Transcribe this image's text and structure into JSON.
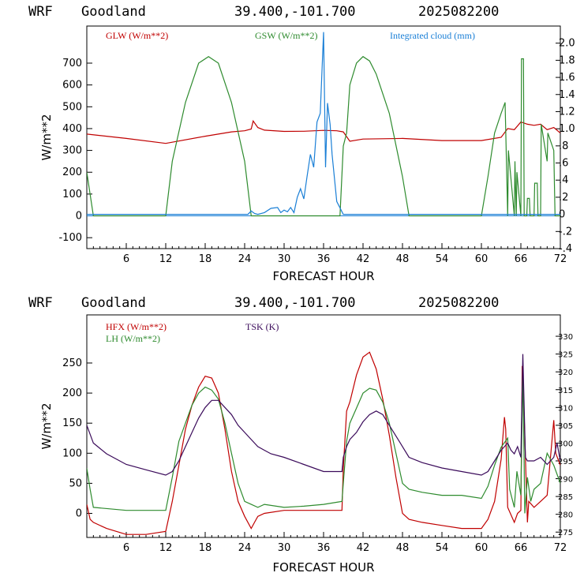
{
  "chart_data": [
    {
      "type": "line",
      "header": {
        "model": "WRF",
        "site": "Goodland",
        "coords": "39.400,-101.700",
        "init": "2025082200"
      },
      "xlabel": "FORECAST HOUR",
      "ylabel": "W/m**2",
      "xlim": [
        0,
        72
      ],
      "x_ticks": [
        "6",
        "12",
        "18",
        "24",
        "30",
        "36",
        "42",
        "48",
        "54",
        "60",
        "66",
        "72"
      ],
      "ylim": [
        -150,
        870
      ],
      "y_ticks": [
        "-100",
        "0",
        "100",
        "200",
        "300",
        "400",
        "500",
        "600",
        "700"
      ],
      "y2lim": [
        -0.4,
        2.2
      ],
      "y2_ticks": [
        "-.4",
        "-.2",
        "0",
        ".2",
        ".4",
        ".6",
        ".8",
        "1.0",
        "1.2",
        "1.4",
        "1.6",
        "1.8",
        "2.0"
      ],
      "legend_placement": "top",
      "colors": {
        "GLW": "#c00000",
        "GSW": "#2e8b2e",
        "CLOUD": "#1a7fd6"
      },
      "series": [
        {
          "name": "GLW (W/m**2)",
          "axis": "left",
          "color": "#c00000",
          "x": [
            0,
            6,
            12,
            18,
            22,
            24,
            25,
            25.3,
            26,
            27,
            30,
            33,
            36,
            38,
            39,
            40,
            42,
            48,
            54,
            60,
            63,
            64,
            65,
            66,
            67,
            68,
            69,
            70,
            71,
            72
          ],
          "y": [
            375,
            355,
            332,
            365,
            385,
            390,
            398,
            435,
            405,
            393,
            387,
            388,
            392,
            390,
            385,
            342,
            352,
            355,
            345,
            345,
            360,
            400,
            395,
            430,
            420,
            415,
            420,
            395,
            405,
            380
          ]
        },
        {
          "name": "GSW (W/m**2)",
          "axis": "left",
          "color": "#2e8b2e",
          "x": [
            0,
            1,
            12,
            13,
            15,
            17,
            18.5,
            20,
            22,
            24,
            25,
            25.5,
            38.5,
            39,
            39.5,
            40,
            41,
            42,
            43,
            44,
            46,
            48,
            49,
            60,
            61,
            62,
            63,
            63.6,
            64,
            64.1,
            65,
            65.1,
            65.3,
            65.4,
            66,
            66.1,
            66.4,
            66.5,
            66.9,
            67,
            67.3,
            67.4,
            68,
            68.1,
            68.5,
            68.6,
            69,
            69.1,
            70,
            70.1,
            71,
            71.2,
            72
          ],
          "y": [
            200,
            0,
            0,
            250,
            520,
            700,
            730,
            700,
            520,
            250,
            0,
            0,
            0,
            320,
            380,
            600,
            700,
            730,
            710,
            650,
            470,
            180,
            0,
            0,
            180,
            380,
            470,
            520,
            0,
            300,
            0,
            250,
            0,
            200,
            0,
            720,
            720,
            0,
            0,
            80,
            80,
            0,
            0,
            150,
            150,
            0,
            0,
            420,
            250,
            380,
            300,
            0,
            0
          ]
        },
        {
          "name": "Integrated cloud (mm)",
          "axis": "right",
          "color": "#1a7fd6",
          "x": [
            0,
            24.5,
            25,
            25.5,
            26,
            27,
            28,
            29,
            29.5,
            30,
            30.5,
            31,
            31.5,
            32,
            32.5,
            33,
            33.5,
            34,
            34.5,
            35,
            35.5,
            36,
            36.3,
            36.6,
            37,
            37.3,
            38,
            39,
            72
          ],
          "y": [
            0,
            0,
            0.04,
            0.01,
            0,
            0.02,
            0.07,
            0.08,
            0.02,
            0.05,
            0.03,
            0.08,
            0.02,
            0.2,
            0.3,
            0.18,
            0.45,
            0.7,
            0.55,
            1.08,
            1.18,
            2.13,
            0.55,
            1.3,
            1.05,
            0.7,
            0.15,
            0,
            0
          ]
        }
      ]
    },
    {
      "type": "line",
      "header": {
        "model": "WRF",
        "site": "Goodland",
        "coords": "39.400,-101.700",
        "init": "2025082200"
      },
      "xlabel": "FORECAST HOUR",
      "ylabel": "W/m**2",
      "xlim": [
        0,
        72
      ],
      "x_ticks": [
        "6",
        "12",
        "18",
        "24",
        "30",
        "36",
        "42",
        "48",
        "54",
        "60",
        "66",
        "72"
      ],
      "ylim": [
        -40,
        330
      ],
      "y_ticks": [
        "0",
        "50",
        "100",
        "150",
        "200",
        "250"
      ],
      "y2lim": [
        273.5,
        336
      ],
      "y2_ticks": [
        "275",
        "280",
        "285",
        "290",
        "295",
        "300",
        "305",
        "310",
        "315",
        "320",
        "325",
        "330"
      ],
      "legend_placement": "top-left",
      "colors": {
        "HFX": "#c00000",
        "LH": "#2e8b2e",
        "TSK": "#3a0a5a"
      },
      "series": [
        {
          "name": "HFX (W/m**2)",
          "axis": "left",
          "color": "#c00000",
          "x": [
            0,
            0.5,
            1,
            3,
            6,
            9,
            12,
            13,
            14,
            15,
            16,
            17,
            18,
            19,
            20,
            21,
            22,
            23,
            24,
            25,
            25.5,
            26,
            27,
            30,
            33,
            36,
            38.8,
            39,
            39.5,
            40,
            41,
            42,
            43,
            44,
            45,
            46,
            47,
            48,
            49,
            51,
            54,
            57,
            60,
            61,
            62,
            63,
            63.5,
            63.7,
            64,
            65,
            65.5,
            66,
            66.2,
            66.5,
            67,
            67.2,
            68,
            69,
            70,
            71,
            71.3,
            72
          ],
          "y": [
            15,
            -10,
            -15,
            -25,
            -35,
            -35,
            -30,
            20,
            80,
            140,
            180,
            210,
            228,
            225,
            200,
            140,
            70,
            20,
            -5,
            -25,
            -15,
            -5,
            0,
            5,
            5,
            5,
            5,
            75,
            170,
            185,
            230,
            260,
            268,
            240,
            190,
            130,
            60,
            0,
            -10,
            -15,
            -20,
            -25,
            -25,
            -10,
            20,
            90,
            160,
            140,
            10,
            -15,
            0,
            5,
            245,
            160,
            -15,
            20,
            10,
            20,
            30,
            155,
            100,
            80
          ]
        },
        {
          "name": "LH (W/m**2)",
          "axis": "left",
          "color": "#2e8b2e",
          "x": [
            0,
            0.5,
            1,
            6,
            12,
            13,
            14,
            15,
            16,
            17,
            18,
            19,
            20,
            21,
            22,
            23,
            24,
            25,
            26,
            27,
            30,
            33,
            36,
            38.8,
            39,
            39.5,
            40,
            41,
            42,
            43,
            44,
            45,
            46,
            47,
            48,
            49,
            51,
            54,
            57,
            60,
            61,
            62,
            63,
            64,
            64.3,
            65,
            65.4,
            66,
            66.3,
            66.6,
            67,
            67.5,
            68,
            69,
            70,
            71,
            72
          ],
          "y": [
            75,
            40,
            10,
            5,
            5,
            60,
            120,
            150,
            180,
            200,
            210,
            205,
            190,
            150,
            100,
            50,
            20,
            15,
            10,
            15,
            10,
            12,
            15,
            20,
            50,
            120,
            150,
            175,
            200,
            208,
            205,
            185,
            150,
            100,
            50,
            40,
            35,
            30,
            30,
            25,
            45,
            80,
            110,
            125,
            40,
            10,
            70,
            30,
            240,
            0,
            60,
            20,
            40,
            50,
            100,
            80,
            50
          ]
        },
        {
          "name": "TSK (K)",
          "axis": "right",
          "color": "#3a0a5a",
          "x": [
            0,
            1,
            3,
            6,
            9,
            12,
            13,
            14,
            15,
            16,
            17,
            18,
            19,
            20,
            21,
            22,
            23,
            24,
            25,
            26,
            27,
            28,
            30,
            33,
            36,
            38.8,
            39,
            39.5,
            40,
            41,
            42,
            43,
            44,
            45,
            46,
            47,
            48,
            49,
            51,
            54,
            57,
            60,
            61,
            62,
            63,
            64,
            64.5,
            65,
            65.5,
            66,
            66.3,
            66.7,
            67,
            68,
            69,
            70,
            71,
            71.5,
            72
          ],
          "y": [
            305,
            300,
            297,
            294,
            292.5,
            291,
            292,
            295,
            299,
            303,
            307,
            310,
            312,
            312,
            310,
            308,
            305,
            303,
            301,
            299,
            298,
            297,
            296,
            294,
            292,
            292,
            296,
            299,
            301,
            303,
            306,
            308,
            309,
            308,
            305,
            302,
            299,
            296,
            294.5,
            293,
            292,
            291,
            292,
            295,
            298,
            300,
            298,
            297,
            299,
            296,
            325,
            296,
            295,
            295,
            296,
            294,
            296,
            300,
            295
          ]
        }
      ]
    }
  ]
}
